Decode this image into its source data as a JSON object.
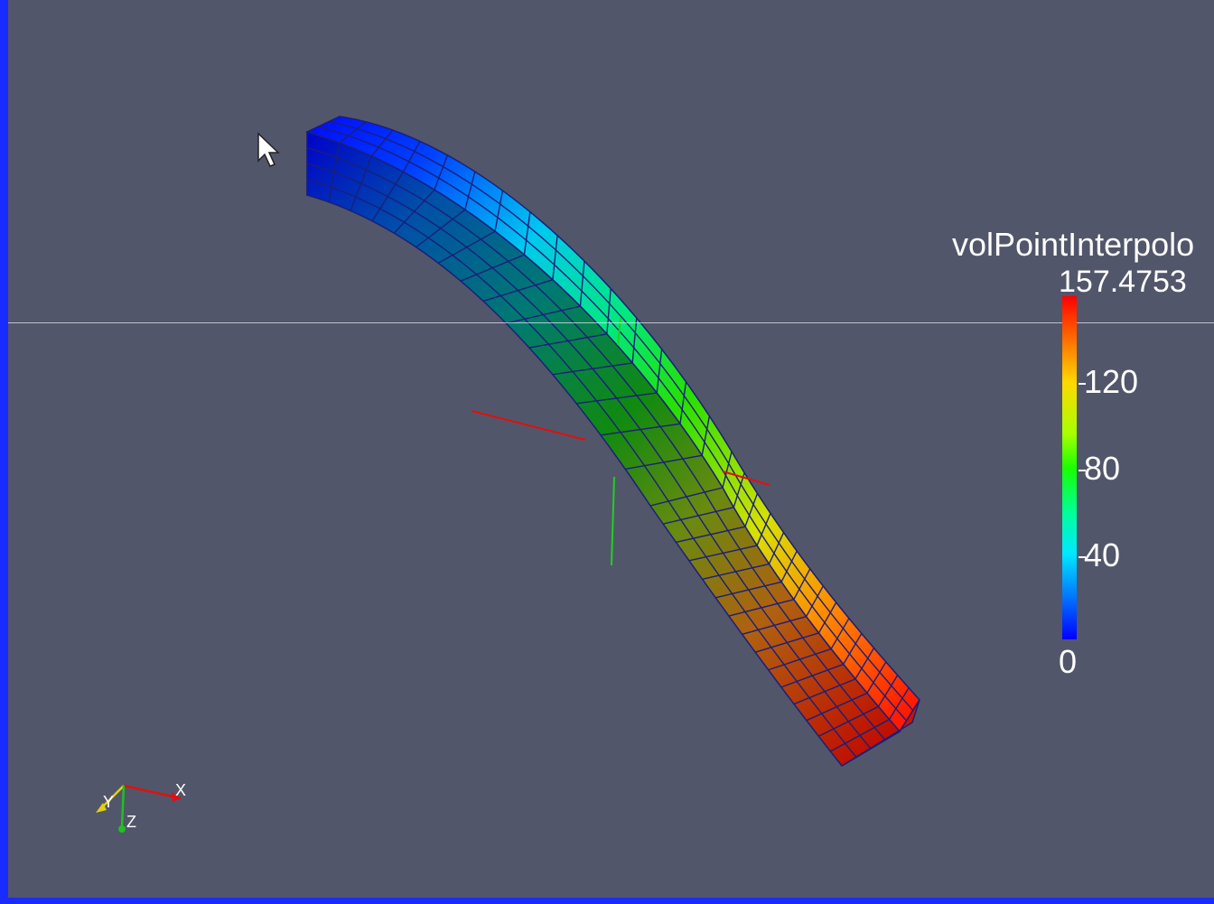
{
  "colorbar": {
    "title": "volPointInterpolo",
    "max_label": "157.4753",
    "min_label": "0",
    "ticks": [
      "120",
      "80",
      "40"
    ]
  },
  "orientation_axes": {
    "x_label": "X",
    "y_label": "Y",
    "z_label": "Z"
  },
  "colors": {
    "background": "#52566a",
    "viewport_border": "#1a2bff",
    "mesh_lines": "#1a1f7a"
  },
  "mesh": {
    "field_min": 0,
    "field_max": 157.4753
  }
}
